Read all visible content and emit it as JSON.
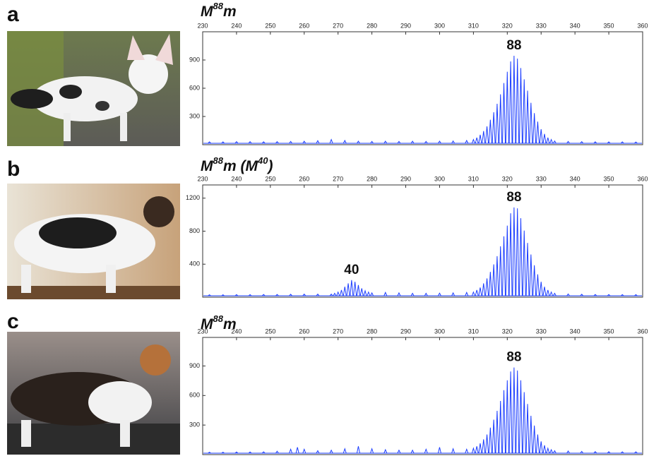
{
  "chart_data": [
    {
      "type": "electropherogram",
      "panel_label": "a",
      "title": [
        {
          "text": "M"
        },
        {
          "text": "88",
          "sup": true
        },
        {
          "text": "m"
        }
      ],
      "color": "#1a3cff",
      "x": [
        232,
        236,
        240,
        244,
        248,
        252,
        256,
        260,
        264,
        268,
        272,
        276,
        280,
        284,
        288,
        292,
        296,
        300,
        304,
        308,
        310,
        311,
        312,
        313,
        314,
        315,
        316,
        317,
        318,
        319,
        320,
        321,
        322,
        323,
        324,
        325,
        326,
        327,
        328,
        329,
        330,
        331,
        332,
        333,
        334,
        338,
        342,
        346,
        350,
        354,
        358
      ],
      "values": [
        15,
        15,
        18,
        18,
        16,
        18,
        20,
        22,
        28,
        40,
        30,
        22,
        20,
        22,
        20,
        22,
        20,
        22,
        25,
        30,
        40,
        60,
        90,
        130,
        180,
        250,
        330,
        420,
        520,
        640,
        760,
        870,
        930,
        900,
        800,
        680,
        560,
        430,
        320,
        230,
        150,
        100,
        60,
        40,
        25,
        20,
        18,
        16,
        15,
        15,
        14
      ],
      "xlim": [
        230,
        360
      ],
      "xticks": [
        230,
        240,
        250,
        260,
        270,
        280,
        290,
        300,
        310,
        320,
        330,
        340,
        350,
        360
      ],
      "ylim": [
        0,
        1200
      ],
      "yticks": [
        300,
        600,
        900
      ],
      "annotations": [
        {
          "text": "88",
          "x": 322
        }
      ]
    },
    {
      "type": "electropherogram",
      "panel_label": "b",
      "title": [
        {
          "text": "M"
        },
        {
          "text": "88",
          "sup": true
        },
        {
          "text": "m (M"
        },
        {
          "text": "40",
          "sup": true
        },
        {
          "text": ")"
        }
      ],
      "color": "#1a3cff",
      "x": [
        232,
        236,
        240,
        244,
        248,
        252,
        256,
        260,
        264,
        268,
        269,
        270,
        271,
        272,
        273,
        274,
        275,
        276,
        277,
        278,
        279,
        280,
        284,
        288,
        292,
        296,
        300,
        304,
        308,
        310,
        311,
        312,
        313,
        314,
        315,
        316,
        317,
        318,
        319,
        320,
        321,
        322,
        323,
        324,
        325,
        326,
        327,
        328,
        329,
        330,
        331,
        332,
        333,
        334,
        338,
        342,
        346,
        350,
        354,
        358
      ],
      "values": [
        12,
        12,
        14,
        14,
        16,
        16,
        18,
        20,
        20,
        20,
        30,
        45,
        70,
        110,
        150,
        190,
        170,
        130,
        90,
        60,
        45,
        35,
        40,
        35,
        30,
        30,
        32,
        35,
        40,
        45,
        70,
        100,
        150,
        210,
        290,
        380,
        480,
        600,
        720,
        850,
        1000,
        1070,
        1060,
        940,
        790,
        640,
        500,
        370,
        260,
        170,
        110,
        70,
        45,
        30,
        22,
        18,
        16,
        15,
        14,
        14
      ],
      "xlim": [
        230,
        360
      ],
      "xticks": [
        230,
        240,
        250,
        260,
        270,
        280,
        290,
        300,
        310,
        320,
        330,
        340,
        350,
        360
      ],
      "ylim": [
        0,
        1360
      ],
      "yticks": [
        400,
        800,
        1200
      ],
      "annotations": [
        {
          "text": "40",
          "x": 274
        },
        {
          "text": "88",
          "x": 322
        }
      ]
    },
    {
      "type": "electropherogram",
      "panel_label": "c",
      "title": [
        {
          "text": "M"
        },
        {
          "text": "88",
          "sup": true
        },
        {
          "text": "m"
        }
      ],
      "color": "#1a3cff",
      "x": [
        232,
        236,
        240,
        244,
        248,
        252,
        256,
        258,
        260,
        264,
        268,
        272,
        276,
        280,
        284,
        288,
        292,
        296,
        300,
        304,
        308,
        310,
        311,
        312,
        313,
        314,
        315,
        316,
        317,
        318,
        319,
        320,
        321,
        322,
        323,
        324,
        325,
        326,
        327,
        328,
        329,
        330,
        331,
        332,
        333,
        334,
        338,
        342,
        346,
        350,
        354,
        358
      ],
      "values": [
        10,
        10,
        12,
        12,
        14,
        20,
        40,
        60,
        40,
        25,
        30,
        45,
        70,
        45,
        35,
        30,
        30,
        40,
        60,
        45,
        40,
        50,
        70,
        100,
        140,
        190,
        260,
        340,
        430,
        530,
        640,
        740,
        830,
        870,
        840,
        740,
        620,
        500,
        380,
        280,
        190,
        120,
        80,
        50,
        35,
        25,
        22,
        18,
        16,
        15,
        14,
        14
      ],
      "xlim": [
        230,
        360
      ],
      "xticks": [
        230,
        240,
        250,
        260,
        270,
        280,
        290,
        300,
        310,
        320,
        330,
        340,
        350,
        360
      ],
      "ylim": [
        0,
        1190
      ],
      "yticks": [
        300,
        600,
        900
      ],
      "annotations": [
        {
          "text": "88",
          "x": 322
        }
      ]
    }
  ]
}
